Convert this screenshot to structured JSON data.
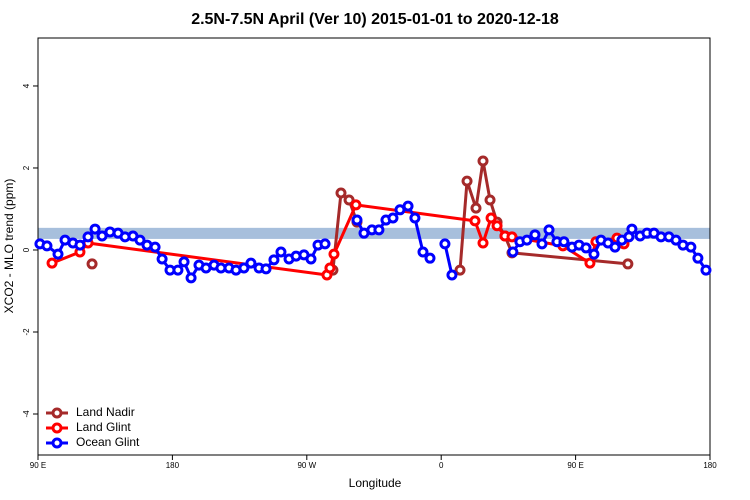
{
  "chart_data": {
    "type": "line",
    "title": "2.5N-7.5N April (Ver 10)   2015-01-01 to 2020-12-18",
    "xlabel": "Longitude",
    "ylabel": "XCO2 - MLO trend (ppm)",
    "xlim": [
      90,
      540
    ],
    "ylim": [
      -5,
      5.17
    ],
    "xticks": [
      {
        "value": 90,
        "label": "90 E"
      },
      {
        "value": 180,
        "label": "180"
      },
      {
        "value": 270,
        "label": "90 W"
      },
      {
        "value": 360,
        "label": "0"
      },
      {
        "value": 450,
        "label": "90 E"
      },
      {
        "value": 540,
        "label": "180"
      }
    ],
    "yticks": [
      -4,
      -2,
      0,
      2,
      4
    ],
    "band": {
      "ylim": [
        0.27,
        0.54
      ],
      "color": "#a7bfdc"
    },
    "legend": "bottom-left",
    "series": [
      {
        "name": "Land Nadir",
        "color": "#a52a2a",
        "x": [
          126.2,
          283.5,
          287.5,
          292.9,
          298.3,
          303.6,
          353.8,
          372.6,
          377.3,
          383.3,
          388,
          392.7,
          397.4,
          402.7,
          407.4,
          485
        ],
        "values": [
          -0.34,
          null,
          -0.49,
          1.39,
          1.22,
          0.68,
          null,
          -0.49,
          1.68,
          1.02,
          2.17,
          1.22,
          0.68,
          0.34,
          -0.07,
          -0.34
        ]
      },
      {
        "name": "Land Glint",
        "color": "#ff0000",
        "x": [
          99.4,
          118.1,
          123.5,
          283.5,
          285.5,
          288.2,
          302.9,
          382.6,
          388,
          393.4,
          397.4,
          402.7,
          407.4,
          441.5,
          459.6,
          463.6,
          477.7,
          482.4
        ],
        "values": [
          -0.32,
          -0.05,
          0.17,
          -0.61,
          -0.44,
          -0.1,
          1.1,
          0.71,
          0.17,
          0.78,
          0.59,
          0.34,
          0.32,
          0.1,
          -0.32,
          0.2,
          0.29,
          0.15
        ]
      },
      {
        "name": "Ocean Glint",
        "color": "#0000ff",
        "x": [
          91.3,
          96,
          103.4,
          108.1,
          113.4,
          118.1,
          123.5,
          128.2,
          132.9,
          138.2,
          143.6,
          148.3,
          153.6,
          158.3,
          163,
          168.4,
          173.1,
          178.4,
          183.7,
          187.8,
          192.5,
          197.8,
          202.5,
          207.9,
          212.5,
          217.9,
          222.6,
          227.9,
          232.6,
          238,
          242.7,
          248,
          252.7,
          258.1,
          262.8,
          268.1,
          272.8,
          277.5,
          282.2,
          293,
          303.6,
          308.3,
          313.6,
          318.3,
          323,
          327.7,
          332.4,
          337.8,
          342.4,
          347.8,
          352.5,
          357,
          362.5,
          367.2,
          390,
          408,
          412.7,
          417.4,
          422.8,
          427.5,
          432.2,
          437.5,
          442.2,
          447.6,
          452.3,
          457,
          462.3,
          467,
          471.7,
          476.4,
          481,
          485.7,
          487.7,
          493.2,
          497.8,
          502.5,
          507.2,
          512.5,
          517.2,
          521.9,
          527.2,
          531.9,
          537.3
        ],
        "values": [
          0.15,
          0.1,
          -0.1,
          0.24,
          0.17,
          0.12,
          0.32,
          0.51,
          0.34,
          0.44,
          0.41,
          0.32,
          0.34,
          0.24,
          0.12,
          0.07,
          -0.22,
          -0.49,
          -0.49,
          -0.29,
          -0.68,
          -0.37,
          -0.44,
          -0.37,
          -0.44,
          -0.44,
          -0.49,
          -0.44,
          -0.32,
          -0.44,
          -0.46,
          -0.24,
          -0.05,
          -0.22,
          -0.15,
          -0.12,
          -0.22,
          0.12,
          0.15,
          null,
          0.73,
          0.41,
          0.49,
          0.49,
          0.73,
          0.78,
          0.98,
          1.07,
          0.78,
          -0.05,
          -0.2,
          null,
          0.15,
          -0.61,
          null,
          -0.05,
          0.2,
          0.24,
          0.37,
          0.15,
          0.49,
          0.2,
          0.2,
          0.07,
          0.12,
          0.05,
          -0.1,
          0.24,
          0.17,
          0.07,
          0.24,
          0.32,
          0.51,
          0.34,
          0.41,
          0.41,
          0.32,
          0.32,
          0.24,
          0.12,
          0.07,
          -0.2,
          -0.49
        ]
      }
    ]
  }
}
